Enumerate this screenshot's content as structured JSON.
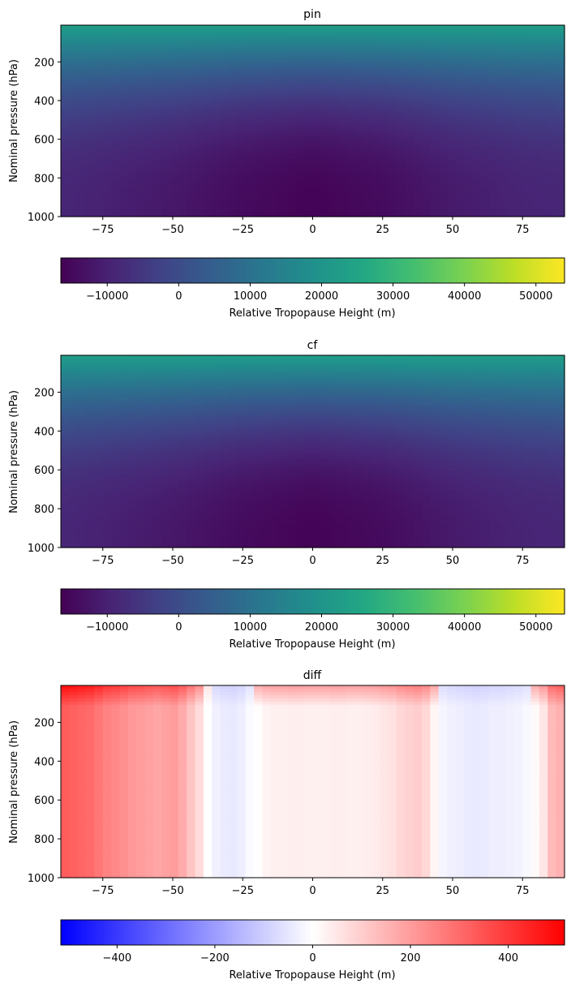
{
  "chart_data": [
    {
      "type": "heatmap",
      "title": "pin",
      "ylabel": "Nominal pressure (hPa)",
      "xlim": [
        -90,
        90
      ],
      "ylim": [
        1000,
        10
      ],
      "x_ticks": [
        -75,
        -50,
        -25,
        0,
        25,
        50,
        75
      ],
      "x_tick_labels": [
        "−75",
        "−50",
        "−25",
        "0",
        "25",
        "50",
        "75"
      ],
      "y_ticks": [
        200,
        400,
        600,
        800,
        1000
      ],
      "y_tick_labels": [
        "200",
        "400",
        "600",
        "800",
        "1000"
      ],
      "colormap": "viridis",
      "grid": false,
      "field_profile": {
        "x": [
          -90,
          -75,
          -50,
          -25,
          0,
          25,
          50,
          75,
          90
        ],
        "value_at_1000hPa": [
          -9000,
          -10000,
          -12000,
          -14500,
          -16000,
          -14500,
          -11500,
          -9500,
          -9000
        ],
        "value_at_10hPa": [
          23000,
          23000,
          23000,
          23000,
          23000,
          23000,
          23000,
          23000,
          23000
        ]
      },
      "colorbar": {
        "label": "Relative Tropopause Height (m)",
        "vmin": -16500,
        "vmax": 54000,
        "ticks": [
          -10000,
          0,
          10000,
          20000,
          30000,
          40000,
          50000
        ],
        "tick_labels": [
          "−10000",
          "0",
          "10000",
          "20000",
          "30000",
          "40000",
          "50000"
        ]
      }
    },
    {
      "type": "heatmap",
      "title": "cf",
      "ylabel": "Nominal pressure (hPa)",
      "xlim": [
        -90,
        90
      ],
      "ylim": [
        1000,
        10
      ],
      "x_ticks": [
        -75,
        -50,
        -25,
        0,
        25,
        50,
        75
      ],
      "x_tick_labels": [
        "−75",
        "−50",
        "−25",
        "0",
        "25",
        "50",
        "75"
      ],
      "y_ticks": [
        200,
        400,
        600,
        800,
        1000
      ],
      "y_tick_labels": [
        "200",
        "400",
        "600",
        "800",
        "1000"
      ],
      "colormap": "viridis",
      "grid": false,
      "field_profile": {
        "x": [
          -90,
          -75,
          -50,
          -25,
          0,
          25,
          50,
          75,
          90
        ],
        "value_at_1000hPa": [
          -9000,
          -10000,
          -12000,
          -14500,
          -16000,
          -14500,
          -11500,
          -9500,
          -9000
        ],
        "value_at_10hPa": [
          23000,
          23000,
          23000,
          23000,
          23000,
          23000,
          23000,
          23000,
          23000
        ]
      },
      "colorbar": {
        "label": "Relative Tropopause Height (m)",
        "vmin": -16500,
        "vmax": 54000,
        "ticks": [
          -10000,
          0,
          10000,
          20000,
          30000,
          40000,
          50000
        ],
        "tick_labels": [
          "−10000",
          "0",
          "10000",
          "20000",
          "30000",
          "40000",
          "50000"
        ]
      }
    },
    {
      "type": "heatmap",
      "title": "diff",
      "ylabel": "Nominal pressure (hPa)",
      "xlim": [
        -90,
        90
      ],
      "ylim": [
        1000,
        10
      ],
      "x_ticks": [
        -75,
        -50,
        -25,
        0,
        25,
        50,
        75
      ],
      "x_tick_labels": [
        "−75",
        "−50",
        "−25",
        "0",
        "25",
        "50",
        "75"
      ],
      "y_ticks": [
        200,
        400,
        600,
        800,
        1000
      ],
      "y_tick_labels": [
        "200",
        "400",
        "600",
        "800",
        "1000"
      ],
      "colormap": "bwr",
      "grid": false,
      "lat_columns": {
        "x": [
          -88.5,
          -85.5,
          -82.5,
          -79.5,
          -76.5,
          -73.5,
          -70.5,
          -67.5,
          -64.5,
          -61.5,
          -58.5,
          -55.5,
          -52.5,
          -49.5,
          -46.5,
          -43.5,
          -40.5,
          -37.5,
          -34.5,
          -31.5,
          -28.5,
          -25.5,
          -22.5,
          -19.5,
          -16.5,
          -13.5,
          -10.5,
          -7.5,
          -4.5,
          -1.5,
          1.5,
          4.5,
          7.5,
          10.5,
          13.5,
          16.5,
          19.5,
          22.5,
          25.5,
          28.5,
          31.5,
          34.5,
          37.5,
          40.5,
          43.5,
          46.5,
          49.5,
          52.5,
          55.5,
          58.5,
          61.5,
          64.5,
          67.5,
          70.5,
          73.5,
          76.5,
          79.5,
          82.5,
          85.5,
          88.5
        ],
        "values": [
          330,
          320,
          310,
          300,
          275,
          250,
          240,
          225,
          205,
          200,
          190,
          180,
          190,
          200,
          170,
          120,
          70,
          0,
          -30,
          -40,
          -45,
          -35,
          -10,
          5,
          25,
          30,
          30,
          35,
          35,
          30,
          30,
          30,
          35,
          35,
          30,
          30,
          35,
          40,
          50,
          60,
          80,
          90,
          100,
          80,
          20,
          -20,
          -30,
          -35,
          -40,
          -45,
          -40,
          -35,
          -35,
          -30,
          -25,
          -15,
          10,
          50,
          140,
          160
        ]
      },
      "top_enhancement": {
        "pressure_top": 10,
        "pressure_bottom": 120,
        "extra_at_top": 160
      },
      "colorbar": {
        "label": "Relative Tropopause Height (m)",
        "vmin": -515,
        "vmax": 515,
        "ticks": [
          -400,
          -200,
          0,
          200,
          400
        ],
        "tick_labels": [
          "−400",
          "−200",
          "0",
          "200",
          "400"
        ]
      }
    }
  ]
}
